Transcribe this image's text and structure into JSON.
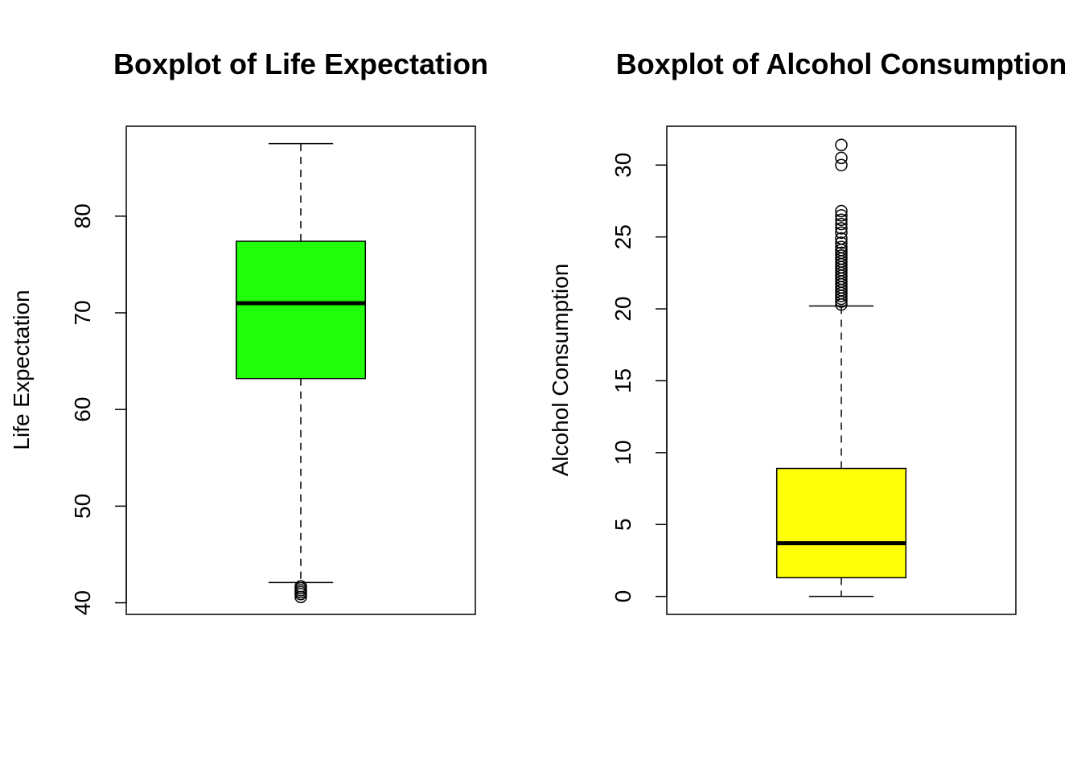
{
  "chart_data": [
    {
      "type": "boxplot",
      "title": "Boxplot of Life Expectation",
      "xlabel": "",
      "ylabel": "Life Expectation",
      "ylim": [
        38.8,
        89.3
      ],
      "yticks": [
        40,
        50,
        60,
        70,
        80
      ],
      "grid": false,
      "box_color": "#22ff0a",
      "box": {
        "whisker_low": 42.1,
        "q1": 63.2,
        "median": 71.0,
        "q3": 77.4,
        "whisker_high": 87.5
      },
      "outliers": [
        40.6,
        40.9,
        41.1,
        41.3,
        41.5,
        41.7
      ]
    },
    {
      "type": "boxplot",
      "title": "Boxplot of Alcohol Consumption",
      "xlabel": "",
      "ylabel": "Alcohol Consumption",
      "ylim": [
        -1.25,
        32.7
      ],
      "yticks": [
        0,
        5,
        10,
        15,
        20,
        25,
        30
      ],
      "grid": false,
      "box_color": "#ffff0a",
      "box": {
        "whisker_low": 0.0,
        "q1": 1.3,
        "median": 3.7,
        "q3": 8.9,
        "whisker_high": 20.2
      },
      "outliers": [
        20.3,
        20.5,
        20.7,
        20.9,
        21.1,
        21.3,
        21.5,
        21.7,
        21.9,
        22.1,
        22.3,
        22.5,
        22.7,
        22.9,
        23.1,
        23.3,
        23.5,
        23.7,
        23.9,
        24.1,
        24.3,
        24.6,
        24.9,
        25.3,
        25.6,
        25.9,
        26.2,
        26.5,
        26.8,
        30.0,
        30.5,
        31.4
      ]
    }
  ]
}
